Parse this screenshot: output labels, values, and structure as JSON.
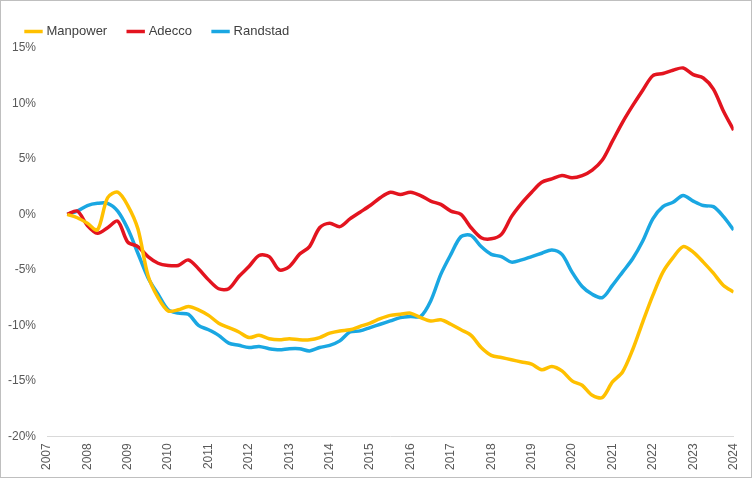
{
  "chart_data": {
    "type": "line",
    "x": [
      2007.5,
      2007.75,
      2008,
      2008.25,
      2008.5,
      2008.75,
      2009,
      2009.25,
      2009.5,
      2009.75,
      2010,
      2010.25,
      2010.5,
      2010.75,
      2011,
      2011.25,
      2011.5,
      2011.75,
      2012,
      2012.25,
      2012.5,
      2012.75,
      2013,
      2013.25,
      2013.5,
      2013.75,
      2014,
      2014.25,
      2014.5,
      2014.75,
      2015,
      2015.25,
      2015.5,
      2015.75,
      2016,
      2016.25,
      2016.5,
      2016.75,
      2017,
      2017.25,
      2017.5,
      2017.75,
      2018,
      2018.25,
      2018.5,
      2018.75,
      2019,
      2019.25,
      2019.5,
      2019.75,
      2020,
      2020.25,
      2020.5,
      2020.75,
      2021,
      2021.25,
      2021.5,
      2021.75,
      2022,
      2022.25,
      2022.5,
      2022.75,
      2023,
      2023.25,
      2023.5,
      2023.75,
      2024
    ],
    "series": [
      {
        "name": "Manpower",
        "color": "#ffc000",
        "values": [
          0,
          -0.3,
          -0.8,
          -1.4,
          1.5,
          2.0,
          0.8,
          -1.3,
          -5.5,
          -7.5,
          -8.7,
          -8.6,
          -8.3,
          -8.6,
          -9.1,
          -9.8,
          -10.2,
          -10.6,
          -11.1,
          -10.9,
          -11.2,
          -11.3,
          -11.2,
          -11.3,
          -11.3,
          -11.1,
          -10.7,
          -10.5,
          -10.4,
          -10.1,
          -9.8,
          -9.4,
          -9.1,
          -9.0,
          -8.9,
          -9.3,
          -9.6,
          -9.5,
          -9.9,
          -10.4,
          -10.9,
          -12.0,
          -12.7,
          -12.9,
          -13.1,
          -13.3,
          -13.5,
          -14.0,
          -13.7,
          -14.1,
          -15.0,
          -15.4,
          -16.3,
          -16.5,
          -15.1,
          -14.2,
          -12.2,
          -9.7,
          -7.3,
          -5.2,
          -3.9,
          -2.9,
          -3.4,
          -4.3,
          -5.3,
          -6.4,
          -7.0
        ]
      },
      {
        "name": "Adecco",
        "color": "#e3141f",
        "values": [
          0,
          0.3,
          -1.0,
          -1.7,
          -1.2,
          -0.6,
          -2.5,
          -2.9,
          -3.8,
          -4.4,
          -4.6,
          -4.6,
          -4.1,
          -4.9,
          -5.9,
          -6.7,
          -6.7,
          -5.6,
          -4.7,
          -3.7,
          -3.8,
          -5.0,
          -4.7,
          -3.6,
          -2.9,
          -1.2,
          -0.8,
          -1.1,
          -0.4,
          0.2,
          0.8,
          1.5,
          2.0,
          1.8,
          2.0,
          1.7,
          1.2,
          0.9,
          0.3,
          0.0,
          -1.2,
          -2.1,
          -2.2,
          -1.8,
          -0.2,
          1.0,
          2.0,
          2.9,
          3.2,
          3.5,
          3.3,
          3.5,
          4.0,
          4.9,
          6.6,
          8.3,
          9.8,
          11.2,
          12.5,
          12.7,
          13.0,
          13.2,
          12.6,
          12.3,
          11.3,
          9.3,
          7.6
        ]
      },
      {
        "name": "Randstad",
        "color": "#1aa7e2",
        "values": [
          0,
          0.3,
          0.8,
          1.0,
          1.0,
          0.3,
          -1.3,
          -3.5,
          -5.7,
          -7.2,
          -8.6,
          -8.9,
          -9.0,
          -10.0,
          -10.4,
          -10.9,
          -11.6,
          -11.8,
          -12.0,
          -11.9,
          -12.1,
          -12.2,
          -12.1,
          -12.1,
          -12.3,
          -12.0,
          -11.8,
          -11.4,
          -10.6,
          -10.5,
          -10.2,
          -9.9,
          -9.6,
          -9.3,
          -9.2,
          -9.2,
          -7.8,
          -5.4,
          -3.6,
          -2.0,
          -1.9,
          -2.9,
          -3.6,
          -3.8,
          -4.3,
          -4.1,
          -3.8,
          -3.5,
          -3.2,
          -3.6,
          -5.2,
          -6.5,
          -7.2,
          -7.5,
          -6.4,
          -5.2,
          -4.0,
          -2.4,
          -0.4,
          0.7,
          1.1,
          1.7,
          1.2,
          0.8,
          0.7,
          -0.2,
          -1.4
        ]
      }
    ],
    "xlim": [
      2007,
      2024
    ],
    "xticks": [
      2007,
      2008,
      2009,
      2010,
      2011,
      2012,
      2013,
      2014,
      2015,
      2016,
      2017,
      2018,
      2019,
      2020,
      2021,
      2022,
      2023,
      2024
    ],
    "ylim": [
      -20,
      15
    ],
    "yticks": [
      {
        "value": -20,
        "label": "-20%"
      },
      {
        "value": -15,
        "label": "-15%"
      },
      {
        "value": -10,
        "label": "-10%"
      },
      {
        "value": -5,
        "label": "-5%"
      },
      {
        "value": 0,
        "label": "0%"
      },
      {
        "value": 5,
        "label": "5%"
      },
      {
        "value": 10,
        "label": "10%"
      },
      {
        "value": 15,
        "label": "15%"
      }
    ],
    "grid": false,
    "legend": "top-left"
  }
}
